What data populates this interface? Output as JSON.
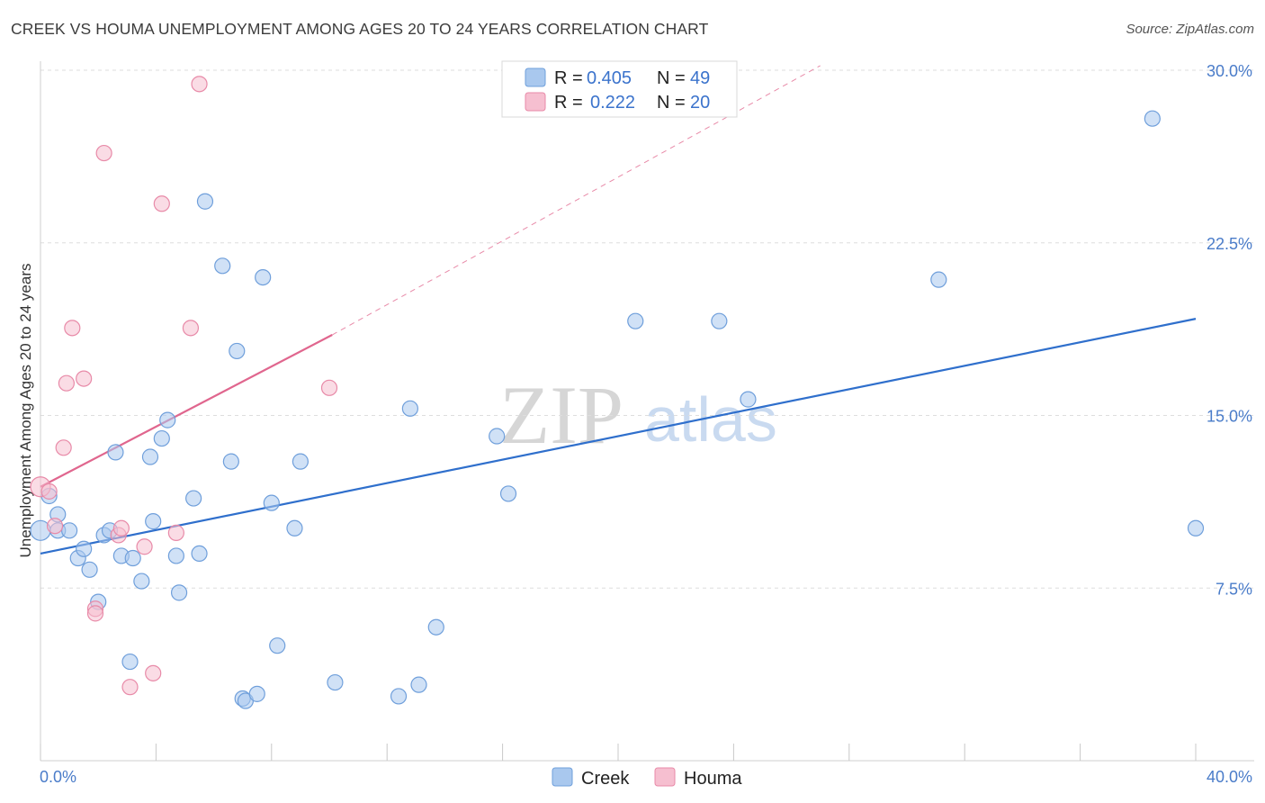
{
  "header": {
    "title": "CREEK VS HOUMA UNEMPLOYMENT AMONG AGES 20 TO 24 YEARS CORRELATION CHART",
    "source": "Source: ZipAtlas.com"
  },
  "watermark": {
    "zip": "ZIP",
    "atlas": "atlas"
  },
  "colors": {
    "creek_fill": "#a9c8ee",
    "creek_stroke": "#6f9fdb",
    "creek_line": "#2f6fcc",
    "houma_fill": "#f6bfd0",
    "houma_stroke": "#e88aa8",
    "houma_line": "#e0668e",
    "grid": "#dedede",
    "tick_text": "#4a7cc9"
  },
  "legend": {
    "rows": [
      {
        "r_label": "R =",
        "r_value": "0.405",
        "n_label": "N =",
        "n_value": "49"
      },
      {
        "r_label": "R =",
        "r_value": "0.222",
        "n_label": "N =",
        "n_value": "20"
      }
    ]
  },
  "chart_data": {
    "type": "scatter",
    "title": "CREEK VS HOUMA UNEMPLOYMENT AMONG AGES 20 TO 24 YEARS CORRELATION CHART",
    "xlabel": "",
    "ylabel": "Unemployment Among Ages 20 to 24 years",
    "xlim": [
      0,
      40
    ],
    "ylim": [
      0,
      31
    ],
    "x_tick_labels": [
      "0.0%",
      "40.0%"
    ],
    "y_ticks": [
      7.5,
      15.0,
      22.5,
      30.0
    ],
    "y_tick_labels": [
      "7.5%",
      "15.0%",
      "22.5%",
      "30.0%"
    ],
    "grid": true,
    "legend_position": "top-center",
    "series": [
      {
        "name": "Creek",
        "r": 0.405,
        "n": 49,
        "trend": {
          "x": [
            0,
            40
          ],
          "y": [
            9.0,
            19.2
          ],
          "style": "solid"
        },
        "points": [
          [
            0.0,
            10.0
          ],
          [
            0.3,
            11.5
          ],
          [
            0.6,
            10.7
          ],
          [
            0.6,
            10.0
          ],
          [
            1.0,
            10.0
          ],
          [
            1.3,
            8.8
          ],
          [
            1.5,
            9.2
          ],
          [
            1.7,
            8.3
          ],
          [
            2.0,
            6.9
          ],
          [
            2.2,
            9.8
          ],
          [
            2.4,
            10.0
          ],
          [
            2.6,
            13.4
          ],
          [
            2.8,
            8.9
          ],
          [
            3.1,
            4.3
          ],
          [
            3.2,
            8.8
          ],
          [
            3.5,
            7.8
          ],
          [
            3.8,
            13.2
          ],
          [
            3.9,
            10.4
          ],
          [
            4.2,
            14.0
          ],
          [
            4.4,
            14.8
          ],
          [
            4.7,
            8.9
          ],
          [
            4.8,
            7.3
          ],
          [
            5.3,
            11.4
          ],
          [
            5.5,
            9.0
          ],
          [
            5.7,
            24.3
          ],
          [
            6.3,
            21.5
          ],
          [
            6.6,
            13.0
          ],
          [
            6.8,
            17.8
          ],
          [
            7.0,
            2.7
          ],
          [
            7.1,
            2.6
          ],
          [
            7.5,
            2.9
          ],
          [
            7.7,
            21.0
          ],
          [
            8.0,
            11.2
          ],
          [
            8.2,
            5.0
          ],
          [
            8.8,
            10.1
          ],
          [
            9.0,
            13.0
          ],
          [
            10.2,
            3.4
          ],
          [
            12.4,
            2.8
          ],
          [
            12.8,
            15.3
          ],
          [
            13.1,
            3.3
          ],
          [
            13.7,
            5.8
          ],
          [
            15.8,
            14.1
          ],
          [
            16.2,
            11.6
          ],
          [
            20.6,
            19.1
          ],
          [
            23.5,
            19.1
          ],
          [
            24.5,
            15.7
          ],
          [
            31.1,
            20.9
          ],
          [
            38.5,
            27.9
          ],
          [
            40.0,
            10.1
          ]
        ]
      },
      {
        "name": "Houma",
        "r": 0.222,
        "n": 20,
        "trend": {
          "x": [
            0,
            10.1
          ],
          "y": [
            11.9,
            18.5
          ],
          "extended_x": [
            10.1,
            27.0
          ],
          "extended_y": [
            18.5,
            30.2
          ],
          "style": "solid then dashed"
        },
        "points": [
          [
            0.0,
            11.9
          ],
          [
            0.3,
            11.7
          ],
          [
            0.5,
            10.2
          ],
          [
            0.8,
            13.6
          ],
          [
            0.9,
            16.4
          ],
          [
            1.1,
            18.8
          ],
          [
            1.5,
            16.6
          ],
          [
            1.9,
            6.6
          ],
          [
            1.9,
            6.4
          ],
          [
            2.2,
            26.4
          ],
          [
            2.7,
            9.8
          ],
          [
            2.8,
            10.1
          ],
          [
            3.1,
            3.2
          ],
          [
            3.6,
            9.3
          ],
          [
            3.9,
            3.8
          ],
          [
            4.2,
            24.2
          ],
          [
            4.7,
            9.9
          ],
          [
            5.2,
            18.8
          ],
          [
            5.5,
            29.4
          ],
          [
            10.0,
            16.2
          ]
        ]
      }
    ]
  }
}
